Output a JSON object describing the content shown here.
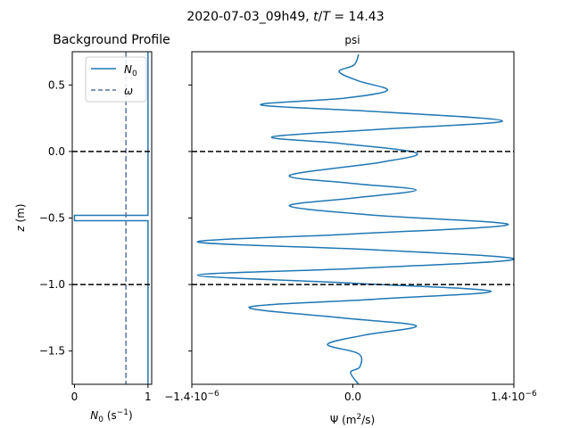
{
  "figure": {
    "suptitle_prefix": "2020-07-03_09h49, ",
    "suptitle_t": "t",
    "suptitle_slash": "/",
    "suptitle_T": "T",
    "suptitle_value": " = 14.43"
  },
  "chart_data": [
    {
      "type": "line",
      "title": "Background Profile",
      "xlabel_symbol": "N",
      "xlabel_sub": "0",
      "xlabel_unit_a": " (s",
      "xlabel_unit_exp": "−1",
      "xlabel_unit_b": ")",
      "ylabel_symbol": "z",
      "ylabel_unit": " (m)",
      "xlim": [
        -0.03,
        1.05
      ],
      "ylim": [
        -1.75,
        0.75
      ],
      "xticks": [
        0,
        1
      ],
      "xtick_labels": [
        "0",
        "1"
      ],
      "yticks": [
        0.5,
        0.0,
        -0.5,
        -1.0,
        -1.5
      ],
      "ytick_labels": [
        "0.5",
        "0.0",
        "−0.5",
        "−1.0",
        "−1.5"
      ],
      "legend_placement": "top-right",
      "series": [
        {
          "name": "N",
          "name_sub": "0",
          "style": "solid",
          "color": "#1f77b4",
          "points": [
            [
              1.0,
              0.75
            ],
            [
              1.0,
              -0.48
            ],
            [
              0.0,
              -0.48
            ],
            [
              0.0,
              -0.52
            ],
            [
              1.0,
              -0.52
            ],
            [
              1.0,
              -1.75
            ]
          ]
        },
        {
          "name": "ω",
          "style": "dashed",
          "color": "#5a74a0",
          "points": [
            [
              0.7,
              0.75
            ],
            [
              0.7,
              -1.75
            ]
          ]
        }
      ],
      "hlines": [
        {
          "y": 0.0,
          "style": "dashed",
          "color": "#000000"
        },
        {
          "y": -1.0,
          "style": "dashed",
          "color": "#000000"
        }
      ]
    },
    {
      "type": "line",
      "title": "psi",
      "xlabel_a": "Ψ (m",
      "xlabel_exp": "2",
      "xlabel_b": "/s)",
      "xlim": [
        -1.4e-06,
        1.4e-06
      ],
      "ylim": [
        -1.75,
        0.75
      ],
      "xticks": [
        -1.4e-06,
        0.0,
        1.4e-06
      ],
      "xtick_labels": [
        {
          "base": "−1.4·10",
          "exp": "−6"
        },
        {
          "base": "0.0",
          "exp": ""
        },
        {
          "base": "1.4·10",
          "exp": "−6"
        }
      ],
      "yticks": [
        0.5,
        0.0,
        -0.5,
        -1.0,
        -1.5
      ],
      "ytick_labels_visible": false,
      "series": [
        {
          "name": "psi",
          "style": "solid",
          "color": "#1f77b4",
          "points": [
            [
              5e-08,
              0.73
            ],
            [
              1e-08,
              0.65
            ],
            [
              -1.2e-07,
              0.6
            ],
            [
              5e-08,
              0.53
            ],
            [
              3e-07,
              0.46
            ],
            [
              -8e-08,
              0.4
            ],
            [
              -8e-07,
              0.35
            ],
            [
              2e-07,
              0.3
            ],
            [
              1.3e-06,
              0.23
            ],
            [
              3e-07,
              0.17
            ],
            [
              -7e-07,
              0.11
            ],
            [
              -1e-07,
              0.06
            ],
            [
              5.5e-07,
              -0.01
            ],
            [
              2.5e-07,
              -0.08
            ],
            [
              -5.5e-07,
              -0.18
            ],
            [
              0.0,
              -0.24
            ],
            [
              5.5e-07,
              -0.29
            ],
            [
              0.0,
              -0.35
            ],
            [
              -5.5e-07,
              -0.41
            ],
            [
              2e-07,
              -0.48
            ],
            [
              1.35e-06,
              -0.55
            ],
            [
              0.0,
              -0.62
            ],
            [
              -1.35e-06,
              -0.68
            ],
            [
              2e-07,
              -0.74
            ],
            [
              1.4e-06,
              -0.81
            ],
            [
              0.0,
              -0.88
            ],
            [
              -1.35e-06,
              -0.93
            ],
            [
              0.0,
              -0.99
            ],
            [
              1.2e-06,
              -1.05
            ],
            [
              2e-07,
              -1.11
            ],
            [
              -9e-07,
              -1.17
            ],
            [
              -1e-07,
              -1.25
            ],
            [
              5.5e-07,
              -1.31
            ],
            [
              1e-07,
              -1.38
            ],
            [
              -2.2e-07,
              -1.45
            ],
            [
              5e-08,
              -1.52
            ],
            [
              6e-08,
              -1.62
            ],
            [
              -2e-08,
              -1.66
            ],
            [
              5e-08,
              -1.75
            ]
          ]
        }
      ],
      "hlines": [
        {
          "y": 0.0,
          "style": "dashed",
          "color": "#000000"
        },
        {
          "y": -1.0,
          "style": "dashed",
          "color": "#000000"
        }
      ]
    }
  ]
}
